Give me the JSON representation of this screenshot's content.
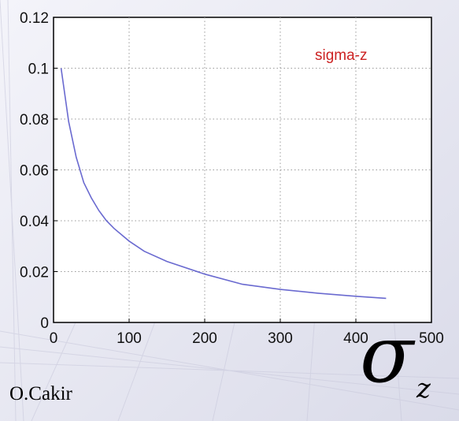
{
  "chart_data": {
    "type": "line",
    "title": "",
    "xlabel": "",
    "ylabel": "",
    "xlim": [
      0,
      500
    ],
    "ylim": [
      0,
      0.12
    ],
    "xticks": [
      "0",
      "100",
      "200",
      "300",
      "400",
      "500"
    ],
    "yticks": [
      "0",
      "0.02",
      "0.04",
      "0.06",
      "0.08",
      "0.1",
      "0.12"
    ],
    "grid": true,
    "annotation": "sigma-z",
    "series": [
      {
        "name": "sigma-z",
        "color": "#6a6ad0",
        "x": [
          10,
          20,
          30,
          40,
          50,
          60,
          70,
          80,
          100,
          120,
          150,
          200,
          250,
          300,
          350,
          400,
          440
        ],
        "y": [
          0.1,
          0.079,
          0.065,
          0.055,
          0.049,
          0.044,
          0.04,
          0.037,
          0.032,
          0.028,
          0.024,
          0.019,
          0.015,
          0.013,
          0.0115,
          0.0103,
          0.0095
        ]
      }
    ],
    "annotation_color": "#cc2222"
  },
  "slide": {
    "author": "O.Cakir",
    "symbol": "σ",
    "symbol_subscript": "z"
  }
}
